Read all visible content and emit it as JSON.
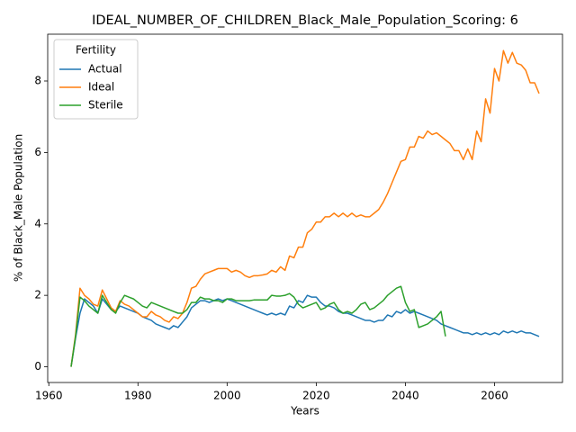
{
  "chart_data": {
    "type": "line",
    "title": "IDEAL_NUMBER_OF_CHILDREN_Black_Male_Population_Scoring: 6",
    "x_label": "Years",
    "y_label": "% of Black_Male Population",
    "legend_title": "Fertility",
    "legend_loc": "upper left",
    "x": [
      1965,
      1966,
      1967,
      1968,
      1969,
      1970,
      1971,
      1972,
      1973,
      1974,
      1975,
      1976,
      1977,
      1978,
      1979,
      1980,
      1981,
      1982,
      1983,
      1984,
      1985,
      1986,
      1987,
      1988,
      1989,
      1990,
      1991,
      1992,
      1993,
      1994,
      1995,
      1996,
      1997,
      1998,
      1999,
      2000,
      2001,
      2002,
      2003,
      2004,
      2005,
      2006,
      2007,
      2008,
      2009,
      2010,
      2011,
      2012,
      2013,
      2014,
      2015,
      2016,
      2017,
      2018,
      2019,
      2020,
      2021,
      2022,
      2023,
      2024,
      2025,
      2026,
      2027,
      2028,
      2029,
      2030,
      2031,
      2032,
      2033,
      2034,
      2035,
      2036,
      2037,
      2038,
      2039,
      2040,
      2041,
      2042,
      2043,
      2044,
      2045,
      2046,
      2047,
      2048,
      2049,
      2050,
      2051,
      2052,
      2053,
      2054,
      2055,
      2056,
      2057,
      2058,
      2059,
      2060,
      2061,
      2062,
      2063,
      2064,
      2065,
      2066,
      2067,
      2068,
      2069,
      2070
    ],
    "series": [
      {
        "name": "Actual",
        "color": "#1f77b4",
        "values": [
          0,
          0.8,
          1.5,
          1.9,
          1.8,
          1.7,
          1.5,
          1.9,
          1.75,
          1.6,
          1.55,
          1.7,
          1.65,
          1.6,
          1.55,
          1.5,
          1.4,
          1.35,
          1.3,
          1.2,
          1.15,
          1.1,
          1.05,
          1.15,
          1.1,
          1.25,
          1.4,
          1.65,
          1.75,
          1.85,
          1.85,
          1.8,
          1.85,
          1.9,
          1.85,
          1.9,
          1.85,
          1.8,
          1.75,
          1.7,
          1.65,
          1.6,
          1.55,
          1.5,
          1.45,
          1.5,
          1.45,
          1.5,
          1.45,
          1.7,
          1.65,
          1.85,
          1.8,
          2.0,
          1.95,
          1.95,
          1.8,
          1.7,
          1.7,
          1.65,
          1.55,
          1.5,
          1.5,
          1.45,
          1.4,
          1.35,
          1.3,
          1.3,
          1.25,
          1.3,
          1.3,
          1.45,
          1.4,
          1.55,
          1.5,
          1.6,
          1.5,
          1.55,
          1.5,
          1.45,
          1.4,
          1.35,
          1.3,
          1.2,
          1.15,
          1.1,
          1.05,
          1.0,
          0.95,
          0.95,
          0.9,
          0.95,
          0.9,
          0.95,
          0.9,
          0.95,
          0.9,
          1.0,
          0.95,
          1.0,
          0.95,
          1.0,
          0.95,
          0.95,
          0.9,
          0.85
        ]
      },
      {
        "name": "Ideal",
        "color": "#ff7f0e",
        "values": [
          0,
          0.9,
          2.2,
          2.0,
          1.9,
          1.75,
          1.7,
          2.15,
          1.9,
          1.65,
          1.55,
          1.85,
          1.75,
          1.7,
          1.6,
          1.5,
          1.4,
          1.4,
          1.55,
          1.45,
          1.4,
          1.3,
          1.25,
          1.4,
          1.35,
          1.5,
          1.8,
          2.2,
          2.25,
          2.45,
          2.6,
          2.65,
          2.7,
          2.75,
          2.75,
          2.75,
          2.65,
          2.7,
          2.65,
          2.55,
          2.5,
          2.55,
          2.55,
          2.57,
          2.6,
          2.7,
          2.65,
          2.8,
          2.7,
          3.1,
          3.05,
          3.35,
          3.35,
          3.75,
          3.85,
          4.05,
          4.05,
          4.2,
          4.2,
          4.3,
          4.2,
          4.3,
          4.2,
          4.3,
          4.2,
          4.25,
          4.2,
          4.2,
          4.3,
          4.4,
          4.6,
          4.85,
          5.15,
          5.45,
          5.75,
          5.8,
          6.15,
          6.15,
          6.45,
          6.4,
          6.6,
          6.5,
          6.55,
          6.45,
          6.35,
          6.25,
          6.05,
          6.05,
          5.8,
          6.1,
          5.8,
          6.6,
          6.3,
          7.5,
          7.1,
          8.35,
          8.0,
          8.85,
          8.5,
          8.8,
          8.5,
          8.45,
          8.3,
          7.95,
          7.95,
          7.65
        ]
      },
      {
        "name": "Sterile",
        "color": "#2ca02c",
        "values": [
          0,
          0.85,
          1.95,
          1.85,
          1.7,
          1.6,
          1.5,
          2.0,
          1.8,
          1.6,
          1.5,
          1.8,
          2.0,
          1.95,
          1.9,
          1.8,
          1.7,
          1.65,
          1.8,
          1.75,
          1.7,
          1.65,
          1.6,
          1.55,
          1.5,
          1.5,
          1.6,
          1.8,
          1.8,
          1.95,
          1.9,
          1.9,
          1.85,
          1.85,
          1.8,
          1.9,
          1.9,
          1.85,
          1.85,
          1.85,
          1.85,
          1.87,
          1.87,
          1.87,
          1.87,
          2.0,
          1.98,
          1.98,
          2.0,
          2.05,
          1.95,
          1.75,
          1.65,
          1.7,
          1.75,
          1.8,
          1.6,
          1.65,
          1.75,
          1.8,
          1.6,
          1.5,
          1.55,
          1.5,
          1.6,
          1.75,
          1.8,
          1.6,
          1.65,
          1.75,
          1.85,
          2.0,
          2.1,
          2.2,
          2.25,
          1.8,
          1.55,
          1.6,
          1.1,
          1.15,
          1.2,
          1.3,
          1.4,
          1.55,
          0.85,
          null,
          null,
          null,
          null,
          null,
          null,
          null,
          null,
          null,
          null,
          null,
          null,
          null,
          null,
          null,
          null,
          null,
          null,
          null,
          null,
          null
        ]
      }
    ],
    "xlim": [
      1959.75,
      2075.25
    ],
    "ylim": [
      -0.44,
      9.31
    ],
    "xticks": [
      1960,
      1980,
      2000,
      2020,
      2040,
      2060
    ],
    "yticks": [
      0,
      2,
      4,
      6,
      8
    ]
  }
}
